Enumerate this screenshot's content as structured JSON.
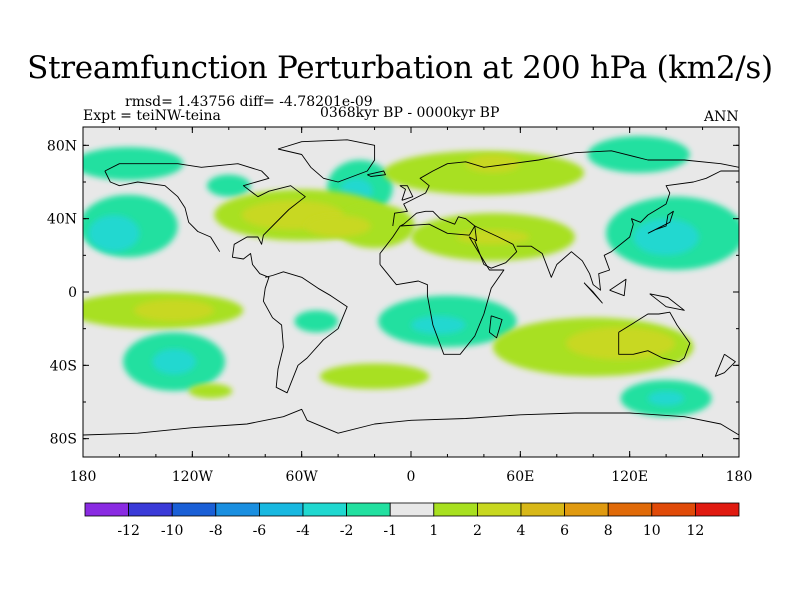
{
  "title": "Streamfunction Perturbation at 200 hPa (km2/s)",
  "stats_line": "rmsd= 1.43756 diff= -4.78201e-09",
  "experiment": "Expt = teiNW-teina",
  "period": "0368kyr BP - 0000kyr BP",
  "season": "ANN",
  "chart_data": {
    "type": "filled-contour-map",
    "projection": "cylindrical-equidistant",
    "xlim": [
      -180,
      180
    ],
    "ylim": [
      -90,
      90
    ],
    "x_ticks": [
      {
        "value": -180,
        "label": "180"
      },
      {
        "value": -120,
        "label": "120W"
      },
      {
        "value": -60,
        "label": "60W"
      },
      {
        "value": 0,
        "label": "0"
      },
      {
        "value": 60,
        "label": "60E"
      },
      {
        "value": 120,
        "label": "120E"
      },
      {
        "value": 180,
        "label": "180"
      }
    ],
    "y_ticks": [
      {
        "value": 80,
        "label": "80N"
      },
      {
        "value": 40,
        "label": "40N"
      },
      {
        "value": 0,
        "label": "0"
      },
      {
        "value": -40,
        "label": "40S"
      },
      {
        "value": -80,
        "label": "80S"
      }
    ],
    "colorbar": {
      "colors": [
        "#8a2be2",
        "#3a3ad8",
        "#1a5fd6",
        "#1a8fe0",
        "#18b8e0",
        "#20d8d0",
        "#22e0a0",
        "#e8e8e8",
        "#a8e020",
        "#c8d820",
        "#d8b818",
        "#e09a10",
        "#e06a08",
        "#e04a08",
        "#e01a10"
      ],
      "labels": [
        "-12",
        "-10",
        "-8",
        "-6",
        "-4",
        "-2",
        "-1",
        "1",
        "2",
        "4",
        "6",
        "8",
        "10",
        "12"
      ]
    },
    "regions": [
      {
        "lon": -155,
        "lat": 70,
        "rx": 30,
        "ry": 9,
        "value": -1.5
      },
      {
        "lon": -28,
        "lat": 57,
        "rx": 18,
        "ry": 15,
        "value": -1.5
      },
      {
        "lon": -30,
        "lat": 55,
        "rx": 9,
        "ry": 7,
        "value": -3
      },
      {
        "lon": -100,
        "lat": 58,
        "rx": 12,
        "ry": 6,
        "value": -1.5
      },
      {
        "lon": -155,
        "lat": 36,
        "rx": 27,
        "ry": 17,
        "value": -1.5
      },
      {
        "lon": -163,
        "lat": 32,
        "rx": 14,
        "ry": 10,
        "value": -3
      },
      {
        "lon": -60,
        "lat": 42,
        "rx": 48,
        "ry": 14,
        "value": 1.5
      },
      {
        "lon": -20,
        "lat": 36,
        "rx": 22,
        "ry": 12,
        "value": 1.5
      },
      {
        "lon": -65,
        "lat": 42,
        "rx": 28,
        "ry": 8,
        "value": 3
      },
      {
        "lon": -40,
        "lat": 36,
        "rx": 18,
        "ry": 6,
        "value": 3
      },
      {
        "lon": 40,
        "lat": 65,
        "rx": 55,
        "ry": 12,
        "value": 1.5
      },
      {
        "lon": 45,
        "lat": 70,
        "rx": 15,
        "ry": 5,
        "value": 3
      },
      {
        "lon": 45,
        "lat": 30,
        "rx": 45,
        "ry": 13,
        "value": 1.5
      },
      {
        "lon": 45,
        "lat": 30,
        "rx": 20,
        "ry": 4,
        "value": 3
      },
      {
        "lon": 125,
        "lat": 75,
        "rx": 28,
        "ry": 10,
        "value": -1.5
      },
      {
        "lon": 145,
        "lat": 32,
        "rx": 38,
        "ry": 20,
        "value": -1.5
      },
      {
        "lon": 140,
        "lat": 30,
        "rx": 18,
        "ry": 10,
        "value": -3
      },
      {
        "lon": -140,
        "lat": -10,
        "rx": 48,
        "ry": 10,
        "value": 1.5
      },
      {
        "lon": -130,
        "lat": -10,
        "rx": 22,
        "ry": 6,
        "value": 3
      },
      {
        "lon": -52,
        "lat": -16,
        "rx": 12,
        "ry": 6,
        "value": -1.5
      },
      {
        "lon": 20,
        "lat": -16,
        "rx": 38,
        "ry": 14,
        "value": -1.5
      },
      {
        "lon": 15,
        "lat": -18,
        "rx": 15,
        "ry": 5,
        "value": -3
      },
      {
        "lon": -130,
        "lat": -38,
        "rx": 28,
        "ry": 16,
        "value": -1.5
      },
      {
        "lon": -130,
        "lat": -38,
        "rx": 12,
        "ry": 7,
        "value": -3
      },
      {
        "lon": -110,
        "lat": -54,
        "rx": 12,
        "ry": 4,
        "value": 1.5
      },
      {
        "lon": 100,
        "lat": -30,
        "rx": 55,
        "ry": 16,
        "value": 1.5
      },
      {
        "lon": 115,
        "lat": -28,
        "rx": 30,
        "ry": 9,
        "value": 3
      },
      {
        "lon": 140,
        "lat": -58,
        "rx": 25,
        "ry": 10,
        "value": -1.5
      },
      {
        "lon": 140,
        "lat": -58,
        "rx": 10,
        "ry": 4,
        "value": -3
      },
      {
        "lon": -20,
        "lat": -46,
        "rx": 30,
        "ry": 7,
        "value": 1.5
      }
    ],
    "coastlines": [
      [
        [
          -168,
          66
        ],
        [
          -160,
          70
        ],
        [
          -140,
          70
        ],
        [
          -128,
          70
        ],
        [
          -115,
          68
        ],
        [
          -95,
          70
        ],
        [
          -82,
          66
        ],
        [
          -78,
          62
        ],
        [
          -92,
          58
        ],
        [
          -84,
          52
        ],
        [
          -78,
          55
        ],
        [
          -66,
          58
        ],
        [
          -58,
          52
        ],
        [
          -67,
          45
        ],
        [
          -70,
          42
        ],
        [
          -76,
          36
        ],
        [
          -81,
          31
        ],
        [
          -82,
          26
        ],
        [
          -84,
          30
        ],
        [
          -90,
          30
        ],
        [
          -97,
          26
        ],
        [
          -98,
          19
        ],
        [
          -92,
          18
        ],
        [
          -88,
          21
        ],
        [
          -87,
          15
        ],
        [
          -83,
          10
        ],
        [
          -78,
          8
        ],
        [
          -80,
          2
        ],
        [
          -81,
          -5
        ],
        [
          -76,
          -14
        ],
        [
          -71,
          -18
        ],
        [
          -70,
          -30
        ],
        [
          -73,
          -42
        ],
        [
          -74,
          -52
        ],
        [
          -68,
          -55
        ],
        [
          -66,
          -50
        ],
        [
          -62,
          -40
        ],
        [
          -57,
          -36
        ],
        [
          -48,
          -26
        ],
        [
          -40,
          -20
        ],
        [
          -35,
          -8
        ],
        [
          -44,
          -2
        ],
        [
          -51,
          2
        ],
        [
          -60,
          8
        ],
        [
          -70,
          11
        ],
        [
          -76,
          9
        ],
        [
          -80,
          8
        ]
      ],
      [
        [
          -105,
          22
        ],
        [
          -110,
          30
        ],
        [
          -117,
          33
        ],
        [
          -122,
          38
        ],
        [
          -124,
          46
        ],
        [
          -128,
          52
        ],
        [
          -135,
          58
        ],
        [
          -150,
          60
        ],
        [
          -160,
          58
        ],
        [
          -165,
          60
        ],
        [
          -168,
          66
        ]
      ],
      [
        [
          -73,
          78
        ],
        [
          -60,
          82
        ],
        [
          -35,
          83
        ],
        [
          -20,
          80
        ],
        [
          -20,
          72
        ],
        [
          -24,
          66
        ],
        [
          -40,
          60
        ],
        [
          -48,
          62
        ],
        [
          -55,
          68
        ],
        [
          -60,
          75
        ],
        [
          -73,
          78
        ]
      ],
      [
        [
          -10,
          36
        ],
        [
          -9,
          43
        ],
        [
          -2,
          44
        ],
        [
          -4,
          48
        ],
        [
          2,
          51
        ],
        [
          8,
          54
        ],
        [
          10,
          58
        ],
        [
          5,
          62
        ],
        [
          12,
          66
        ],
        [
          20,
          70
        ],
        [
          30,
          71
        ],
        [
          40,
          68
        ],
        [
          55,
          70
        ],
        [
          70,
          72
        ],
        [
          90,
          76
        ],
        [
          110,
          77
        ],
        [
          130,
          72
        ],
        [
          150,
          72
        ],
        [
          170,
          70
        ],
        [
          180,
          68
        ]
      ],
      [
        [
          -17,
          15
        ],
        [
          -17,
          21
        ],
        [
          -10,
          30
        ],
        [
          -6,
          36
        ],
        [
          10,
          37
        ],
        [
          20,
          32
        ],
        [
          32,
          31
        ],
        [
          35,
          36
        ],
        [
          30,
          40
        ],
        [
          26,
          41
        ],
        [
          24,
          37
        ],
        [
          16,
          40
        ],
        [
          12,
          44
        ],
        [
          8,
          44
        ],
        [
          3,
          43
        ],
        [
          -4,
          37
        ],
        [
          -6,
          36
        ]
      ],
      [
        [
          35,
          36
        ],
        [
          36,
          28
        ],
        [
          32,
          30
        ],
        [
          43,
          12
        ],
        [
          51,
          12
        ],
        [
          44,
          2
        ],
        [
          40,
          -12
        ],
        [
          35,
          -24
        ],
        [
          27,
          -34
        ],
        [
          18,
          -34
        ],
        [
          12,
          -18
        ],
        [
          9,
          -2
        ],
        [
          9,
          4
        ],
        [
          4,
          6
        ],
        [
          -8,
          4
        ],
        [
          -17,
          15
        ]
      ],
      [
        [
          35,
          36
        ],
        [
          48,
          30
        ],
        [
          56,
          26
        ],
        [
          58,
          22
        ],
        [
          52,
          16
        ],
        [
          44,
          13
        ],
        [
          40,
          15
        ],
        [
          35,
          28
        ]
      ],
      [
        [
          58,
          25
        ],
        [
          66,
          25
        ],
        [
          72,
          21
        ],
        [
          77,
          8
        ],
        [
          80,
          15
        ],
        [
          88,
          22
        ],
        [
          94,
          17
        ],
        [
          98,
          10
        ],
        [
          100,
          4
        ],
        [
          104,
          1
        ],
        [
          103,
          10
        ],
        [
          109,
          12
        ],
        [
          106,
          20
        ],
        [
          110,
          22
        ],
        [
          120,
          30
        ],
        [
          122,
          37
        ],
        [
          121,
          40
        ],
        [
          126,
          38
        ],
        [
          130,
          42
        ],
        [
          140,
          48
        ],
        [
          142,
          54
        ],
        [
          140,
          58
        ],
        [
          155,
          60
        ],
        [
          162,
          62
        ],
        [
          170,
          66
        ],
        [
          180,
          66
        ]
      ],
      [
        [
          114,
          -22
        ],
        [
          114,
          -34
        ],
        [
          122,
          -34
        ],
        [
          130,
          -32
        ],
        [
          138,
          -36
        ],
        [
          147,
          -38
        ],
        [
          150,
          -36
        ],
        [
          153,
          -28
        ],
        [
          146,
          -18
        ],
        [
          142,
          -11
        ],
        [
          136,
          -12
        ],
        [
          130,
          -12
        ],
        [
          122,
          -17
        ],
        [
          114,
          -22
        ]
      ],
      [
        [
          130,
          32
        ],
        [
          134,
          34
        ],
        [
          140,
          36
        ],
        [
          141,
          42
        ],
        [
          144,
          44
        ],
        [
          142,
          38
        ],
        [
          136,
          35
        ],
        [
          130,
          32
        ]
      ],
      [
        [
          -5,
          50
        ],
        [
          -3,
          56
        ],
        [
          -6,
          58
        ],
        [
          -2,
          58
        ],
        [
          1,
          52
        ],
        [
          -5,
          50
        ]
      ],
      [
        [
          -24,
          64
        ],
        [
          -15,
          66
        ],
        [
          -14,
          64
        ],
        [
          -22,
          63
        ],
        [
          -24,
          64
        ]
      ],
      [
        [
          95,
          5
        ],
        [
          105,
          -6
        ],
        [
          100,
          0
        ],
        [
          95,
          5
        ]
      ],
      [
        [
          109,
          1
        ],
        [
          118,
          7
        ],
        [
          117,
          -2
        ],
        [
          109,
          1
        ]
      ],
      [
        [
          131,
          -1
        ],
        [
          141,
          -3
        ],
        [
          150,
          -10
        ],
        [
          140,
          -8
        ],
        [
          131,
          -1
        ]
      ],
      [
        [
          44,
          -13
        ],
        [
          50,
          -15
        ],
        [
          47,
          -25
        ],
        [
          43,
          -22
        ],
        [
          44,
          -13
        ]
      ],
      [
        [
          172,
          -34
        ],
        [
          178,
          -38
        ],
        [
          172,
          -44
        ],
        [
          167,
          -46
        ],
        [
          172,
          -34
        ]
      ],
      [
        [
          -180,
          -78
        ],
        [
          -150,
          -77
        ],
        [
          -120,
          -74
        ],
        [
          -90,
          -72
        ],
        [
          -70,
          -68
        ],
        [
          -60,
          -64
        ],
        [
          -57,
          -70
        ],
        [
          -40,
          -77
        ],
        [
          -20,
          -72
        ],
        [
          0,
          -70
        ],
        [
          30,
          -69
        ],
        [
          60,
          -67
        ],
        [
          90,
          -66
        ],
        [
          120,
          -66
        ],
        [
          150,
          -68
        ],
        [
          170,
          -72
        ],
        [
          180,
          -78
        ]
      ]
    ]
  }
}
